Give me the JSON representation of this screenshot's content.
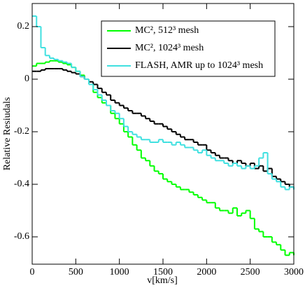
{
  "chart_data": {
    "type": "step",
    "x_label": "v[km/s]",
    "y_label": "Relative Resiudals",
    "x": [
      0,
      50,
      100,
      150,
      200,
      250,
      300,
      350,
      400,
      450,
      500,
      550,
      600,
      650,
      700,
      750,
      800,
      850,
      900,
      950,
      1000,
      1050,
      1100,
      1150,
      1200,
      1250,
      1300,
      1350,
      1400,
      1450,
      1500,
      1550,
      1600,
      1650,
      1700,
      1750,
      1800,
      1850,
      1900,
      1950,
      2000,
      2050,
      2100,
      2150,
      2200,
      2250,
      2300,
      2350,
      2400,
      2450,
      2500,
      2550,
      2600,
      2650,
      2700,
      2750,
      2800,
      2850,
      2900,
      2950,
      3000
    ],
    "series": [
      {
        "name": "MC², 512³ mesh",
        "color": "#00ff00",
        "values": [
          0.05,
          0.06,
          0.06,
          0.065,
          0.07,
          0.07,
          0.065,
          0.06,
          0.055,
          0.045,
          0.03,
          0.015,
          0,
          -0.02,
          -0.05,
          -0.07,
          -0.09,
          -0.1,
          -0.13,
          -0.15,
          -0.17,
          -0.2,
          -0.22,
          -0.25,
          -0.27,
          -0.3,
          -0.31,
          -0.33,
          -0.35,
          -0.36,
          -0.38,
          -0.39,
          -0.4,
          -0.41,
          -0.42,
          -0.42,
          -0.43,
          -0.44,
          -0.45,
          -0.46,
          -0.47,
          -0.47,
          -0.49,
          -0.5,
          -0.5,
          -0.51,
          -0.49,
          -0.52,
          -0.51,
          -0.5,
          -0.53,
          -0.57,
          -0.58,
          -0.6,
          -0.6,
          -0.62,
          -0.63,
          -0.65,
          -0.67,
          -0.66,
          -0.67
        ]
      },
      {
        "name": "MC², 1024³ mesh",
        "color": "#000000",
        "values": [
          0.03,
          0.03,
          0.035,
          0.04,
          0.04,
          0.04,
          0.04,
          0.035,
          0.03,
          0.025,
          0.02,
          0.01,
          0,
          -0.01,
          -0.02,
          -0.035,
          -0.05,
          -0.06,
          -0.08,
          -0.09,
          -0.1,
          -0.11,
          -0.12,
          -0.13,
          -0.13,
          -0.14,
          -0.15,
          -0.16,
          -0.17,
          -0.17,
          -0.18,
          -0.19,
          -0.2,
          -0.21,
          -0.22,
          -0.23,
          -0.23,
          -0.24,
          -0.25,
          -0.25,
          -0.27,
          -0.28,
          -0.29,
          -0.3,
          -0.3,
          -0.31,
          -0.32,
          -0.31,
          -0.32,
          -0.33,
          -0.32,
          -0.34,
          -0.33,
          -0.35,
          -0.34,
          -0.37,
          -0.38,
          -0.39,
          -0.4,
          -0.41,
          -0.42
        ]
      },
      {
        "name": "FLASH, AMR up to 1024³ mesh",
        "color": "#40e0e0",
        "values": [
          0.24,
          0.2,
          0.12,
          0.09,
          0.08,
          0.075,
          0.07,
          0.065,
          0.06,
          0.045,
          0.03,
          0.01,
          0,
          -0.02,
          -0.04,
          -0.06,
          -0.08,
          -0.1,
          -0.12,
          -0.13,
          -0.15,
          -0.18,
          -0.2,
          -0.21,
          -0.22,
          -0.23,
          -0.23,
          -0.24,
          -0.24,
          -0.23,
          -0.24,
          -0.24,
          -0.25,
          -0.24,
          -0.25,
          -0.26,
          -0.26,
          -0.27,
          -0.28,
          -0.27,
          -0.29,
          -0.3,
          -0.31,
          -0.31,
          -0.32,
          -0.33,
          -0.32,
          -0.33,
          -0.34,
          -0.33,
          -0.34,
          -0.33,
          -0.3,
          -0.28,
          -0.36,
          -0.38,
          -0.39,
          -0.41,
          -0.42,
          -0.41,
          -0.42
        ]
      }
    ],
    "xlim": [
      0,
      3000
    ],
    "xticks": [
      0,
      500,
      1000,
      1500,
      2000,
      2500,
      3000
    ],
    "ylim": [
      -0.704,
      0.288
    ],
    "yticks": [
      0.2,
      0,
      -0.2,
      -0.4,
      -0.6
    ],
    "legend": "upper right"
  }
}
